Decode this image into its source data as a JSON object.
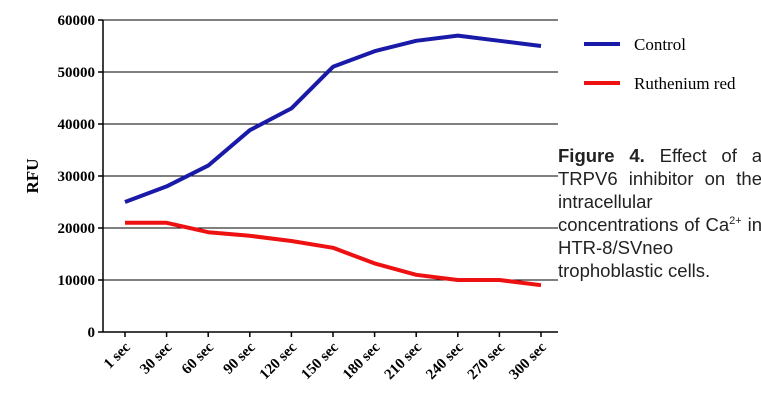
{
  "chart_data": {
    "type": "line",
    "title": "",
    "xlabel": "",
    "ylabel": "RFU",
    "categories": [
      "1 sec",
      "30 sec",
      "60 sec",
      "90 sec",
      "120 sec",
      "150 sec",
      "180 sec",
      "210 sec",
      "240 sec",
      "270 sec",
      "300 sec"
    ],
    "ylim": [
      0,
      60000
    ],
    "yticks": [
      "0",
      "10000",
      "20000",
      "30000",
      "40000",
      "50000",
      "60000"
    ],
    "grid": "horizontal",
    "legend_position": "top-right",
    "series": [
      {
        "name": "Control",
        "color": "#1a1aa8",
        "values": [
          25000,
          28000,
          32000,
          38800,
          43000,
          51000,
          54000,
          56000,
          57000,
          56000,
          55000
        ]
      },
      {
        "name": "Ruthenium red",
        "color": "#ee1111",
        "values": [
          21000,
          21000,
          19200,
          18500,
          17500,
          16200,
          13200,
          11000,
          10000,
          10000,
          9000
        ]
      }
    ]
  },
  "caption": {
    "lead": "Figure 4.",
    "text_before_sup": " Effect of a TRPV6 inhibitor on the intracellular concentrations of Ca",
    "sup": "2+",
    "text_after_sup": " in HTR-8/SVneo trophoblastic cells."
  }
}
